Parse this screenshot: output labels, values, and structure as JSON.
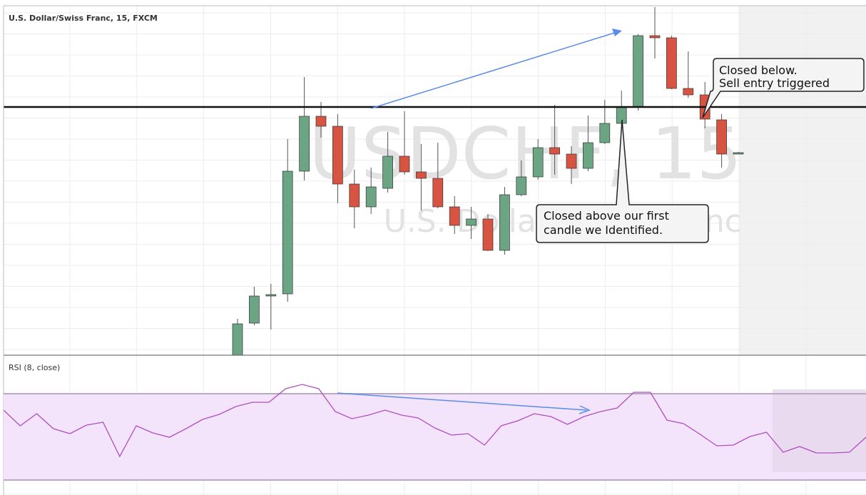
{
  "chart_data": [
    {
      "type": "candlestick",
      "title": "U.S. Dollar/Swiss Franc, 15, FXCM",
      "watermark": "USDCHF, 15",
      "watermark_subtitle": "U.S. Dollar/Swiss Franc",
      "up_color": "#6ba583",
      "down_color": "#d75442",
      "open": [
        0,
        45,
        85,
        86,
        258,
        335,
        321,
        240,
        208,
        234,
        279,
        257,
        248,
        208,
        182,
        191,
        147,
        225,
        250,
        291,
        282,
        262,
        298,
        325,
        348,
        448,
        445,
        374,
        365,
        330,
        283
      ],
      "close": [
        44,
        83,
        85,
        258,
        335,
        321,
        240,
        208,
        236,
        279,
        257,
        248,
        208,
        182,
        191,
        147,
        225,
        250,
        291,
        282,
        262,
        298,
        325,
        348,
        448,
        445,
        374,
        365,
        331,
        282,
        284
      ],
      "high": [
        51,
        96,
        100,
        303,
        390,
        355,
        338,
        260,
        263,
        313,
        342,
        296,
        298,
        223,
        208,
        198,
        236,
        273,
        303,
        351,
        293,
        336,
        358,
        371,
        450,
        488,
        448,
        426,
        383,
        338,
        285
      ],
      "low": [
        -4,
        42,
        36,
        75,
        245,
        305,
        213,
        178,
        198,
        228,
        253,
        203,
        206,
        170,
        163,
        146,
        141,
        223,
        246,
        253,
        240,
        258,
        296,
        323,
        343,
        416,
        373,
        361,
        318,
        263,
        282
      ],
      "ylim": [
        0,
        490
      ],
      "level": 348,
      "annotations": [
        [
          "Closed below.",
          "Sell entry triggered"
        ],
        [
          "Closed above our first",
          "candle we Identified."
        ]
      ]
    },
    {
      "type": "line",
      "title": "RSI (8, close)",
      "color": "#b04fc0",
      "values": [
        119,
        97,
        114,
        93,
        86,
        98,
        102,
        54,
        97,
        87,
        81,
        93,
        106,
        113,
        124,
        130,
        130,
        149,
        155,
        149,
        117,
        107,
        112,
        119,
        112,
        108,
        94,
        84,
        86,
        70,
        97,
        104,
        114,
        110,
        99,
        110,
        117,
        122,
        144,
        144,
        105,
        100,
        85,
        69,
        70,
        82,
        88,
        60,
        68,
        59,
        59,
        60,
        81
      ],
      "ylim": [
        0,
        196
      ],
      "band": [
        142,
        21
      ]
    }
  ]
}
